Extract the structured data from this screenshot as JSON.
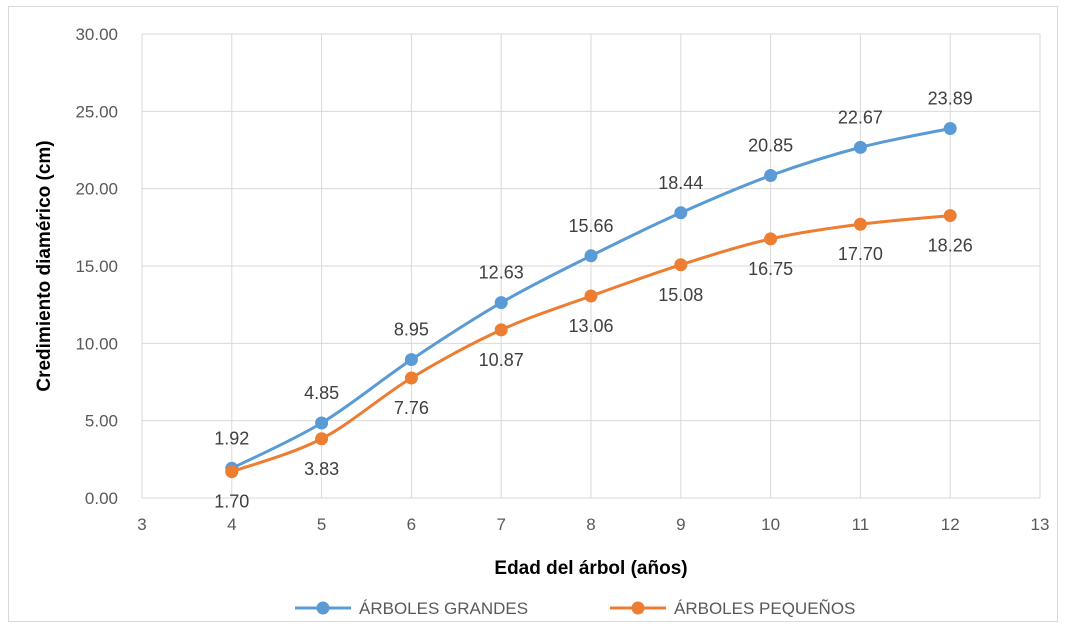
{
  "chart_data": {
    "type": "line",
    "title": "",
    "xlabel": "Edad del árbol (años)",
    "ylabel": "Credimiento diamérico (cm)",
    "xlim": [
      3,
      13
    ],
    "ylim": [
      0,
      30
    ],
    "x_ticks": [
      "3",
      "4",
      "5",
      "6",
      "7",
      "8",
      "9",
      "10",
      "11",
      "12",
      "13"
    ],
    "y_ticks": [
      "0.00",
      "5.00",
      "10.00",
      "15.00",
      "20.00",
      "25.00",
      "30.00"
    ],
    "grid": true,
    "smooth": true,
    "legend_position": "bottom",
    "x": [
      4,
      5,
      6,
      7,
      8,
      9,
      10,
      11,
      12
    ],
    "series": [
      {
        "name": "ÁRBOLES GRANDES",
        "color": "#5b9bd5",
        "values": [
          1.92,
          4.85,
          8.95,
          12.63,
          15.66,
          18.44,
          20.85,
          22.67,
          23.89
        ],
        "labels": [
          "1.92",
          "4.85",
          "8.95",
          "12.63",
          "15.66",
          "18.44",
          "20.85",
          "22.67",
          "23.89"
        ],
        "label_position": "above"
      },
      {
        "name": "ÁRBOLES PEQUEÑOS",
        "color": "#ed7d31",
        "values": [
          1.7,
          3.83,
          7.76,
          10.87,
          13.06,
          15.08,
          16.75,
          17.7,
          18.26
        ],
        "labels": [
          "1.70",
          "3.83",
          "7.76",
          "10.87",
          "13.06",
          "15.08",
          "16.75",
          "17.70",
          "18.26"
        ],
        "label_position": "below"
      }
    ]
  }
}
